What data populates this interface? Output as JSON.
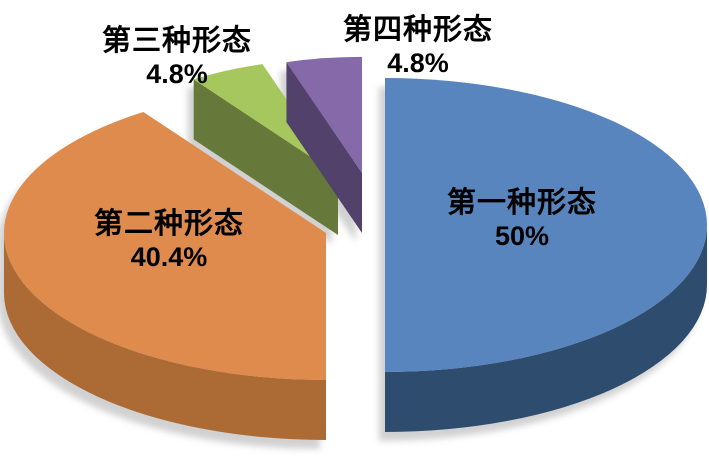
{
  "chart_data": {
    "type": "pie",
    "style": "3d-exploded",
    "title": "",
    "legend": "none",
    "background": "#FFFFFF",
    "label_text_color": "#000000",
    "start_angle_deg": 0,
    "direction": "clockwise",
    "categories": [
      "第一种形态",
      "第二种形态",
      "第三种形态",
      "第四种形态"
    ],
    "values": [
      50,
      40.4,
      4.8,
      4.8
    ],
    "slices": [
      {
        "label": "第一种形态",
        "value": 50,
        "display_pct": "50%",
        "color": "#5885BD",
        "side_color": "#2E4D6E"
      },
      {
        "label": "第二种形态",
        "value": 40.4,
        "display_pct": "40.4%",
        "color": "#DE8B4D",
        "side_color": "#AC6A35"
      },
      {
        "label": "第三种形态",
        "value": 4.8,
        "display_pct": "4.8%",
        "color": "#A6C75D",
        "side_color": "#66783A"
      },
      {
        "label": "第四种形态",
        "value": 4.8,
        "display_pct": "4.8%",
        "color": "#8569A8",
        "side_color": "#51416B"
      }
    ]
  }
}
